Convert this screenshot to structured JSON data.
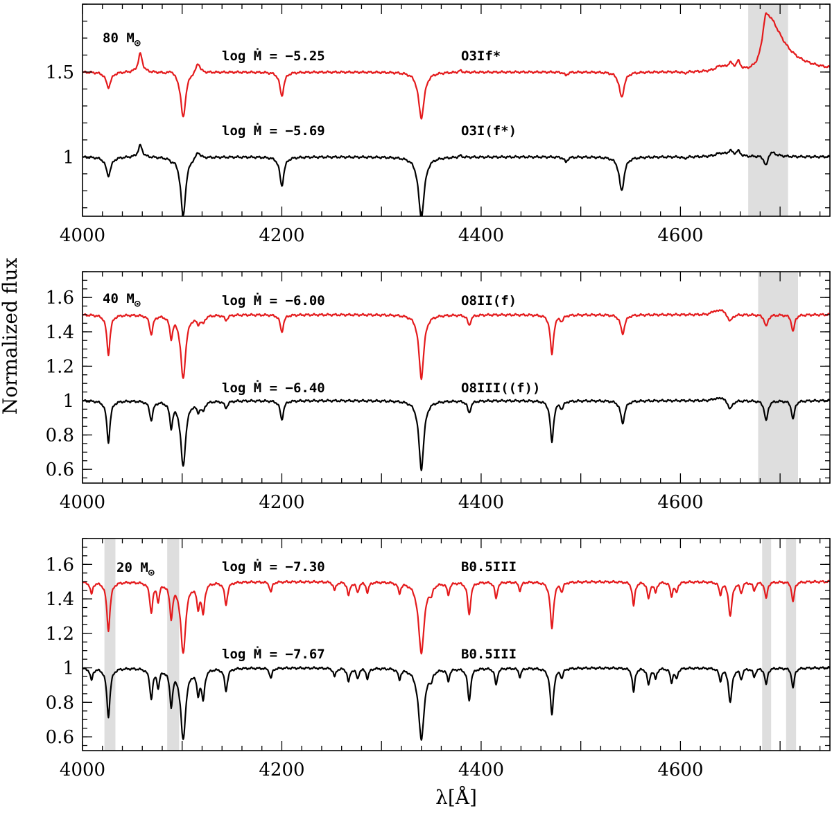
{
  "chart_data": [
    {
      "type": "line",
      "mass_label": "80 M",
      "mass_symbol": "⊙",
      "xlim": [
        4000,
        4750
      ],
      "ylim": [
        0.65,
        1.9
      ],
      "xticks": [
        4000,
        4200,
        4400,
        4600
      ],
      "xtick_labels": [
        "4000",
        "4200",
        "4400",
        "4600"
      ],
      "yticks": [
        1,
        1.5
      ],
      "ytick_labels": [
        "1",
        "1.5"
      ],
      "shaded_bands": [
        [
          4668,
          4708
        ]
      ],
      "series": [
        {
          "color": "#e41a1c",
          "continuum": 1.5,
          "mdot_label": "log Ṁ  =  −5.25",
          "sptype_label": "O3If*",
          "lines": [
            [
              4026,
              -0.09,
              3
            ],
            [
              4058,
              0.11,
              2.5
            ],
            [
              4089,
              0.02,
              2
            ],
            [
              4101,
              -0.27,
              3
            ],
            [
              4116,
              0.06,
              2.5
            ],
            [
              4200,
              -0.14,
              2.5
            ],
            [
              4340,
              -0.27,
              3.5
            ],
            [
              4379,
              0.01,
              2
            ],
            [
              4485,
              -0.02,
              2
            ],
            [
              4541,
              -0.15,
              3
            ],
            [
              4604,
              -0.01,
              2
            ],
            [
              4640,
              0.03,
              6
            ],
            [
              4650,
              0.04,
              3
            ],
            [
              4658,
              0.05,
              2.5
            ],
            [
              4686,
              0.34,
              8
            ]
          ]
        },
        {
          "color": "#000000",
          "continuum": 1.0,
          "mdot_label": "log Ṁ  =  −5.69",
          "sptype_label": "O3I(f*)",
          "lines": [
            [
              4026,
              -0.11,
              3
            ],
            [
              4058,
              0.07,
              2.5
            ],
            [
              4089,
              -0.01,
              2
            ],
            [
              4101,
              -0.35,
              3
            ],
            [
              4116,
              0.04,
              2.5
            ],
            [
              4200,
              -0.17,
              2.5
            ],
            [
              4340,
              -0.36,
              3.5
            ],
            [
              4379,
              0.01,
              2
            ],
            [
              4485,
              -0.03,
              2
            ],
            [
              4541,
              -0.2,
              3
            ],
            [
              4604,
              -0.01,
              2
            ],
            [
              4640,
              0.02,
              6
            ],
            [
              4650,
              0.03,
              3
            ],
            [
              4658,
              0.03,
              2.5
            ],
            [
              4686,
              -0.08,
              2.5
            ],
            [
              4690,
              0.04,
              6
            ]
          ]
        }
      ]
    },
    {
      "type": "line",
      "mass_label": "40 M",
      "mass_symbol": "⊙",
      "xlim": [
        4000,
        4750
      ],
      "ylim": [
        0.52,
        1.75
      ],
      "xticks": [
        4000,
        4200,
        4400,
        4600
      ],
      "xtick_labels": [
        "4000",
        "4200",
        "4400",
        "4600"
      ],
      "yticks": [
        0.6,
        0.8,
        1,
        1.2,
        1.4,
        1.6
      ],
      "ytick_labels": [
        "0.6",
        "0.8",
        "1",
        "1.2",
        "1.4",
        "1.6"
      ],
      "ylabel": "Normalized flux",
      "shaded_bands": [
        [
          4678,
          4718
        ]
      ],
      "series": [
        {
          "color": "#e41a1c",
          "continuum": 1.5,
          "mdot_label": "log Ṁ  =  −6.00",
          "sptype_label": "O8II(f)",
          "lines": [
            [
              4026,
              -0.23,
              2
            ],
            [
              4069,
              -0.11,
              2
            ],
            [
              4089,
              -0.12,
              1.8
            ],
            [
              4101,
              -0.37,
              3
            ],
            [
              4116,
              -0.04,
              2
            ],
            [
              4121,
              -0.04,
              2
            ],
            [
              4144,
              -0.03,
              2
            ],
            [
              4200,
              -0.1,
              2
            ],
            [
              4340,
              -0.37,
              3
            ],
            [
              4388,
              -0.06,
              2
            ],
            [
              4471,
              -0.23,
              2
            ],
            [
              4481,
              -0.03,
              2
            ],
            [
              4542,
              -0.11,
              2.5
            ],
            [
              4634,
              0.02,
              3
            ],
            [
              4641,
              0.03,
              3
            ],
            [
              4650,
              -0.04,
              2.5
            ],
            [
              4686,
              -0.07,
              2
            ],
            [
              4713,
              -0.1,
              1.8
            ]
          ]
        },
        {
          "color": "#000000",
          "continuum": 1.0,
          "mdot_label": "log Ṁ  =  −6.40",
          "sptype_label": "O8III((f))",
          "lines": [
            [
              4026,
              -0.24,
              2
            ],
            [
              4069,
              -0.11,
              2
            ],
            [
              4089,
              -0.14,
              1.8
            ],
            [
              4101,
              -0.38,
              3
            ],
            [
              4116,
              -0.05,
              2
            ],
            [
              4121,
              -0.05,
              2
            ],
            [
              4144,
              -0.04,
              2
            ],
            [
              4200,
              -0.11,
              2
            ],
            [
              4340,
              -0.4,
              3
            ],
            [
              4388,
              -0.07,
              2
            ],
            [
              4471,
              -0.24,
              2
            ],
            [
              4481,
              -0.04,
              2
            ],
            [
              4542,
              -0.13,
              2.5
            ],
            [
              4634,
              0.01,
              3
            ],
            [
              4641,
              0.02,
              3
            ],
            [
              4650,
              -0.05,
              2.5
            ],
            [
              4686,
              -0.12,
              2
            ],
            [
              4713,
              -0.11,
              1.8
            ]
          ]
        }
      ]
    },
    {
      "type": "line",
      "mass_label": "20 M",
      "mass_symbol": "⊙",
      "xlim": [
        4000,
        4750
      ],
      "ylim": [
        0.52,
        1.75
      ],
      "xticks": [
        4000,
        4200,
        4400,
        4600
      ],
      "xtick_labels": [
        "4000",
        "4200",
        "4400",
        "4600"
      ],
      "yticks": [
        0.6,
        0.8,
        1,
        1.2,
        1.4,
        1.6
      ],
      "ytick_labels": [
        "0.6",
        "0.8",
        "1",
        "1.2",
        "1.4",
        "1.6"
      ],
      "xlabel": "λ[Å]",
      "shaded_bands": [
        [
          4022,
          4033
        ],
        [
          4085,
          4097
        ],
        [
          4682,
          4691
        ],
        [
          4706,
          4716
        ]
      ],
      "series": [
        {
          "color": "#e41a1c",
          "continuum": 1.5,
          "mdot_label": "log Ṁ  =  −7.30",
          "sptype_label": "B0.5III",
          "lines": [
            [
              4009,
              -0.07,
              1.5
            ],
            [
              4026,
              -0.28,
              2
            ],
            [
              4069,
              -0.17,
              1.8
            ],
            [
              4076,
              -0.1,
              1.5
            ],
            [
              4089,
              -0.19,
              1.8
            ],
            [
              4101,
              -0.41,
              3
            ],
            [
              4116,
              -0.13,
              1.8
            ],
            [
              4121,
              -0.17,
              1.8
            ],
            [
              4144,
              -0.13,
              1.8
            ],
            [
              4189,
              -0.06,
              1.5
            ],
            [
              4253,
              -0.05,
              1.5
            ],
            [
              4267,
              -0.08,
              1.5
            ],
            [
              4276,
              -0.06,
              1.5
            ],
            [
              4286,
              -0.06,
              1.5
            ],
            [
              4318,
              -0.06,
              1.5
            ],
            [
              4340,
              -0.41,
              3.5
            ],
            [
              4350,
              -0.05,
              1.5
            ],
            [
              4367,
              -0.07,
              1.5
            ],
            [
              4388,
              -0.19,
              1.8
            ],
            [
              4415,
              -0.1,
              1.5
            ],
            [
              4439,
              -0.05,
              1.5
            ],
            [
              4471,
              -0.27,
              2
            ],
            [
              4481,
              -0.05,
              1.5
            ],
            [
              4553,
              -0.14,
              1.5
            ],
            [
              4568,
              -0.1,
              1.5
            ],
            [
              4575,
              -0.06,
              1.5
            ],
            [
              4591,
              -0.08,
              1.5
            ],
            [
              4596,
              -0.06,
              1.5
            ],
            [
              4640,
              -0.07,
              1.5
            ],
            [
              4650,
              -0.2,
              2
            ],
            [
              4661,
              -0.06,
              1.5
            ],
            [
              4674,
              -0.05,
              1.5
            ],
            [
              4686,
              -0.1,
              1.5
            ],
            [
              4713,
              -0.12,
              1.5
            ]
          ]
        },
        {
          "color": "#000000",
          "continuum": 1.0,
          "mdot_label": "log Ṁ  =  −7.67",
          "sptype_label": "B0.5III",
          "lines": [
            [
              4009,
              -0.07,
              1.5
            ],
            [
              4026,
              -0.28,
              2
            ],
            [
              4069,
              -0.17,
              1.8
            ],
            [
              4076,
              -0.1,
              1.5
            ],
            [
              4089,
              -0.2,
              1.8
            ],
            [
              4101,
              -0.41,
              3
            ],
            [
              4116,
              -0.13,
              1.8
            ],
            [
              4121,
              -0.17,
              1.8
            ],
            [
              4144,
              -0.13,
              1.8
            ],
            [
              4189,
              -0.06,
              1.5
            ],
            [
              4253,
              -0.05,
              1.5
            ],
            [
              4267,
              -0.08,
              1.5
            ],
            [
              4276,
              -0.06,
              1.5
            ],
            [
              4286,
              -0.06,
              1.5
            ],
            [
              4318,
              -0.06,
              1.5
            ],
            [
              4340,
              -0.41,
              3.5
            ],
            [
              4350,
              -0.05,
              1.5
            ],
            [
              4367,
              -0.07,
              1.5
            ],
            [
              4388,
              -0.19,
              1.8
            ],
            [
              4415,
              -0.1,
              1.5
            ],
            [
              4439,
              -0.05,
              1.5
            ],
            [
              4471,
              -0.27,
              2
            ],
            [
              4481,
              -0.05,
              1.5
            ],
            [
              4553,
              -0.14,
              1.5
            ],
            [
              4568,
              -0.1,
              1.5
            ],
            [
              4575,
              -0.06,
              1.5
            ],
            [
              4591,
              -0.08,
              1.5
            ],
            [
              4596,
              -0.06,
              1.5
            ],
            [
              4640,
              -0.07,
              1.5
            ],
            [
              4650,
              -0.2,
              2
            ],
            [
              4661,
              -0.06,
              1.5
            ],
            [
              4674,
              -0.05,
              1.5
            ],
            [
              4686,
              -0.1,
              1.5
            ],
            [
              4713,
              -0.12,
              1.5
            ]
          ]
        }
      ]
    }
  ]
}
